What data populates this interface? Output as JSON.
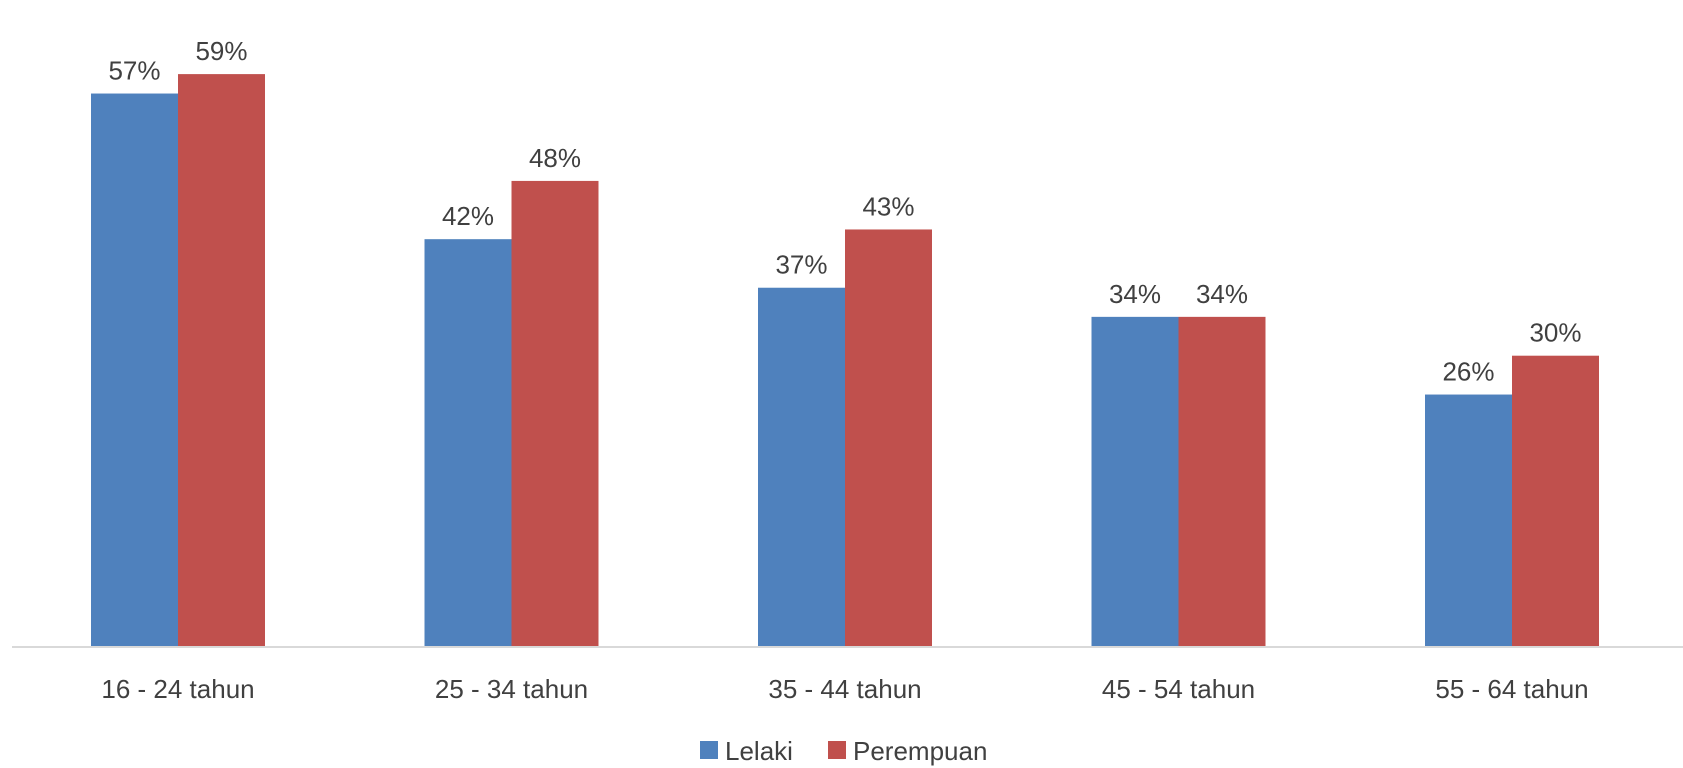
{
  "chart_data": {
    "type": "bar",
    "title": "",
    "xlabel": "",
    "ylabel": "",
    "categories": [
      "16 - 24 tahun",
      "25 - 34 tahun",
      "35 - 44 tahun",
      "45 - 54 tahun",
      "55 - 64 tahun"
    ],
    "series": [
      {
        "name": "Lelaki",
        "values": [
          57,
          42,
          37,
          34,
          26
        ],
        "labels": [
          "57%",
          "42%",
          "37%",
          "34%",
          "26%"
        ],
        "color": "#4f81bd"
      },
      {
        "name": "Perempuan",
        "values": [
          59,
          48,
          43,
          34,
          30
        ],
        "labels": [
          "59%",
          "48%",
          "43%",
          "34%",
          "30%"
        ],
        "color": "#c0504d"
      }
    ],
    "ylim": [
      0,
      60
    ],
    "grid": false,
    "legend_position": "bottom"
  }
}
